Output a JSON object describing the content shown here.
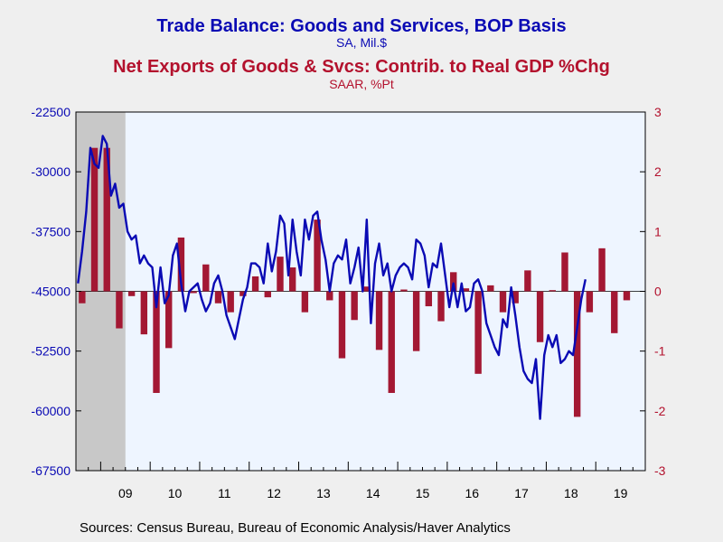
{
  "titles": {
    "title1": "Trade Balance: Goods and Services, BOP Basis",
    "subtitle1": "SA, Mil.$",
    "title2": "Net Exports of Goods & Svcs: Contrib. to Real GDP %Chg",
    "subtitle2": "SAAR, %Pt"
  },
  "source": "Sources:  Census Bureau, Bureau of Economic Analysis/Haver Analytics",
  "colors": {
    "line": "#0a0ab4",
    "bars": "#a31833",
    "plot_bg": "#eef5ff",
    "recession": "#c8c8c8",
    "left_axis_text": "#0a0ab4",
    "right_axis_text": "#b3112d"
  },
  "chart_data": {
    "type": "combo",
    "x_range": [
      "2008-07",
      "2019-12"
    ],
    "x_tick_labels": [
      "09",
      "10",
      "11",
      "12",
      "13",
      "14",
      "15",
      "16",
      "17",
      "18",
      "19"
    ],
    "recession": {
      "start": "2008-07",
      "end": "2009-06"
    },
    "left_axis": {
      "ylim": [
        -67500,
        -22500
      ],
      "ticks": [
        "-22500",
        "-30000",
        "-37500",
        "-45000",
        "-52500",
        "-60000",
        "-67500"
      ]
    },
    "right_axis": {
      "ylim": [
        -3,
        3
      ],
      "ticks": [
        "3",
        "2",
        "1",
        "0",
        "-1",
        "-2",
        "-3"
      ]
    },
    "series": [
      {
        "name": "Trade Balance: Goods and Services, BOP Basis",
        "kind": "line",
        "axis": "left",
        "start": "2008-07",
        "values": [
          -44000,
          -40000,
          -35000,
          -27000,
          -29000,
          -29500,
          -25500,
          -26500,
          -33000,
          -31500,
          -34500,
          -34000,
          -37500,
          -38500,
          -38000,
          -41500,
          -40500,
          -41500,
          -42000,
          -47000,
          -42000,
          -46500,
          -45500,
          -40500,
          -39000,
          -44000,
          -47500,
          -45000,
          -44500,
          -44000,
          -46000,
          -47500,
          -46500,
          -44000,
          -43000,
          -45000,
          -48000,
          -49500,
          -51000,
          -48500,
          -46000,
          -44500,
          -41500,
          -41500,
          -42000,
          -44000,
          -39000,
          -42500,
          -40000,
          -35500,
          -36500,
          -43000,
          -36000,
          -40000,
          -43000,
          -36000,
          -38500,
          -35500,
          -35000,
          -38500,
          -41000,
          -45000,
          -41500,
          -40500,
          -41000,
          -38500,
          -44000,
          -42000,
          -39500,
          -45000,
          -36000,
          -49000,
          -41500,
          -39000,
          -43000,
          -41500,
          -45000,
          -43000,
          -42000,
          -41500,
          -42000,
          -43500,
          -38500,
          -39000,
          -40500,
          -44500,
          -41500,
          -42000,
          -39000,
          -43000,
          -47000,
          -44000,
          -47000,
          -44000,
          -47500,
          -47000,
          -44000,
          -43500,
          -45000,
          -49000,
          -50500,
          -52000,
          -53000,
          -48500,
          -49500,
          -44500,
          -48000,
          -52000,
          -55000,
          -56000,
          -56500,
          -53500,
          -61000,
          -53000,
          -50500,
          -52000,
          -50500,
          -54000,
          -53500,
          -52500,
          -53000,
          -49500,
          -46000,
          -43500
        ]
      },
      {
        "name": "Net Exports of Goods & Svcs: Contrib. to Real GDP %Chg",
        "kind": "bar",
        "axis": "right",
        "start": "2008-Q3",
        "values": [
          -0.2,
          2.4,
          2.4,
          -0.62,
          -0.08,
          -0.72,
          -1.7,
          -0.95,
          0.9,
          -0.03,
          0.45,
          -0.2,
          -0.35,
          -0.08,
          0.25,
          -0.1,
          0.58,
          0.4,
          -0.35,
          1.2,
          -0.15,
          -1.12,
          -0.48,
          0.08,
          -0.98,
          -1.7,
          0.03,
          -1.0,
          -0.25,
          -0.5,
          0.32,
          0.05,
          -1.38,
          0.1,
          -0.35,
          -0.2,
          0.35,
          -0.85,
          0.02,
          0.65,
          -2.1,
          -0.35,
          0.72,
          -0.7,
          -0.15,
          0.0
        ]
      }
    ]
  }
}
